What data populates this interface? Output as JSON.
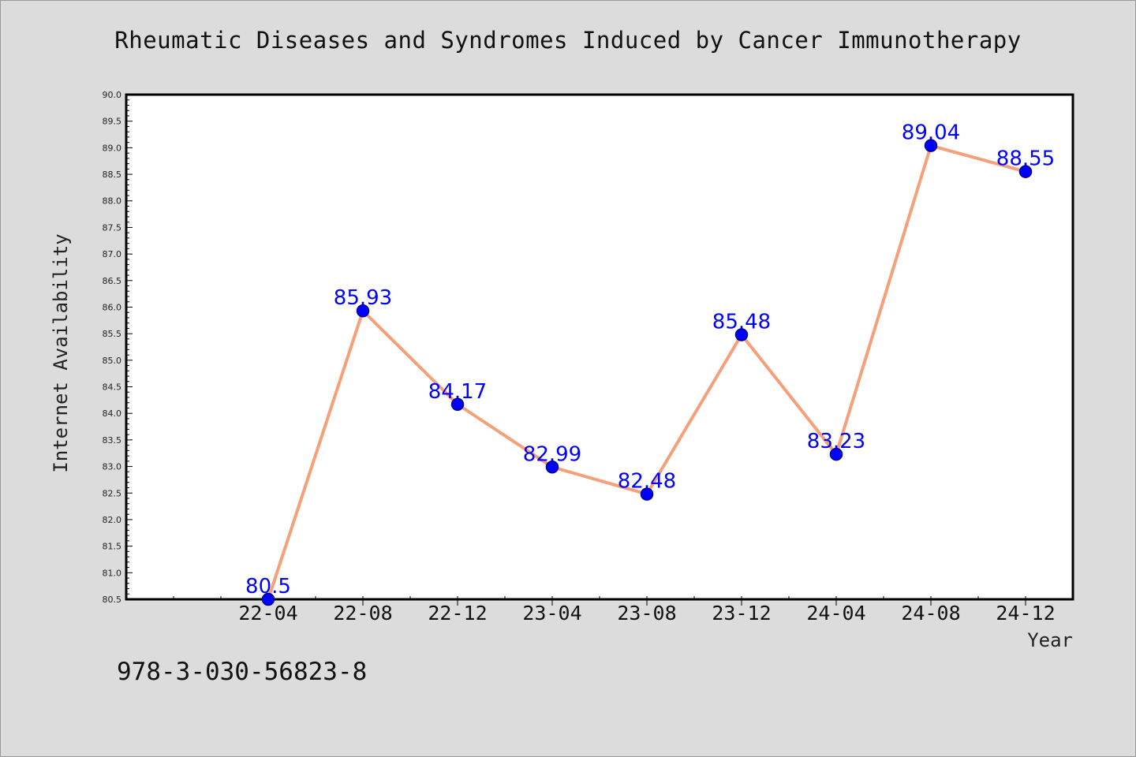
{
  "title": "Rheumatic Diseases and Syndromes Induced by Cancer Immunotherapy",
  "footer_code": "978-3-030-56823-8",
  "chart_data": {
    "type": "line",
    "title": "Rheumatic Diseases and Syndromes Induced by Cancer Immunotherapy",
    "xlabel": "Year",
    "ylabel": "Internet Availability",
    "categories": [
      "22-04",
      "22-08",
      "22-12",
      "23-04",
      "23-08",
      "23-12",
      "24-04",
      "24-08",
      "24-12"
    ],
    "series": [
      {
        "values": [
          80.5,
          85.93,
          84.17,
          82.99,
          82.48,
          85.48,
          83.23,
          89.04,
          88.55
        ],
        "labels": [
          "80.5",
          "85.93",
          "84.17",
          "82.99",
          "82.48",
          "85.48",
          "83.23",
          "89.04",
          "88.55"
        ]
      }
    ],
    "ylim": [
      80.5,
      90.0
    ],
    "yticks": [
      "80.5",
      "81.0",
      "81.5",
      "82.0",
      "82.5",
      "83.0",
      "83.5",
      "84.0",
      "84.5",
      "85.0",
      "85.5",
      "86.0",
      "86.5",
      "87.0",
      "87.5",
      "88.0",
      "88.5",
      "89.0",
      "89.5",
      "90.0"
    ],
    "grid": false,
    "legend": "none",
    "colors": {
      "line": "#f5a07a",
      "marker": "#0000ff",
      "marker_edge": "#00008b",
      "data_label": "#0000ff",
      "plot_background": "#ffffff",
      "figure_background": "#dcdcdc"
    }
  }
}
